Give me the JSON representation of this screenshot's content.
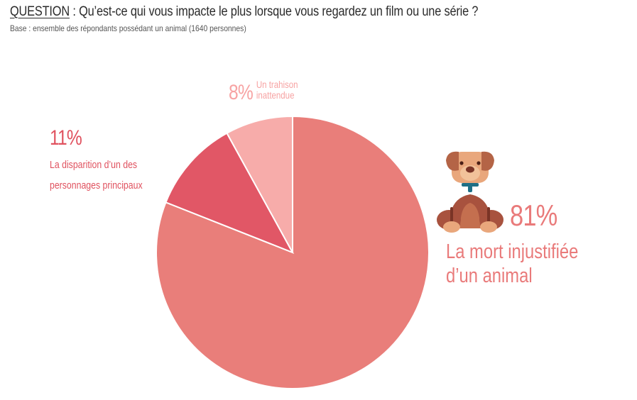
{
  "header": {
    "question_word": "QUESTION",
    "question_sep": " : ",
    "question_text": "Qu’est-ce qui vous impacte le plus lorsque vous regardez un film ou une série ?",
    "base": "Base : ensemble des répondants possédant un animal (1640 personnes)"
  },
  "chart_data": {
    "type": "pie",
    "title": "",
    "start_angle_deg": 0,
    "direction": "clockwise",
    "slices": [
      {
        "label_lines": [
          "La mort injustifiée",
          "d’un animal"
        ],
        "value": 81,
        "display": "81%",
        "color": "#e97e7a"
      },
      {
        "label_lines": [
          "La disparition d’un des",
          "personnages principaux"
        ],
        "value": 11,
        "display": "11%",
        "color": "#e15766"
      },
      {
        "label_lines": [
          "Un trahison",
          "inattendue"
        ],
        "value": 8,
        "display": "8%",
        "color": "#f7acaa"
      }
    ],
    "icon": "dog-icon"
  }
}
